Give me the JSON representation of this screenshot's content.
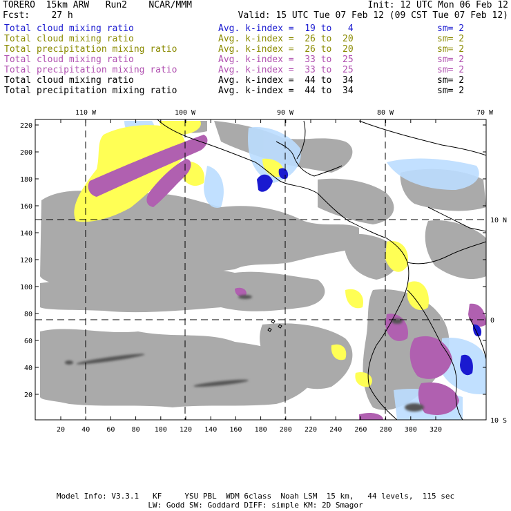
{
  "header": {
    "left_line1": "TORERO  15km ARW   Run2    NCAR/MMM",
    "right_line1": "Init: 12 UTC Mon 06 Feb 12",
    "left_line2": "Fcst:    27 h",
    "right_line2": "Valid: 15 UTC Tue 07 Feb 12 (09 CST Tue 07 Feb 12)"
  },
  "legend": [
    {
      "field": "Total cloud mixing ratio",
      "index": "Avg. k-index =  19 to   4",
      "sm": "sm= 2",
      "color": "#1a1ad0"
    },
    {
      "field": "Total cloud mixing ratio",
      "index": "Avg. k-index =  26 to  20",
      "sm": "sm= 2",
      "color": "#8a8a00"
    },
    {
      "field": "Total precipitation mixing ratio",
      "index": "Avg. k-index =  26 to  20",
      "sm": "sm= 2",
      "color": "#8a8a00"
    },
    {
      "field": "Total cloud mixing ratio",
      "index": "Avg. k-index =  33 to  25",
      "sm": "sm= 2",
      "color": "#b050b0"
    },
    {
      "field": "Total precipitation mixing ratio",
      "index": "Avg. k-index =  33 to  25",
      "sm": "sm= 2",
      "color": "#b050b0"
    },
    {
      "field": "Total cloud mixing ratio",
      "index": "Avg. k-index =  44 to  34",
      "sm": "sm= 2",
      "color": "#000000"
    },
    {
      "field": "Total precipitation mixing ratio",
      "index": "Avg. k-index =  44 to  34",
      "sm": "sm= 2",
      "color": "#000000"
    }
  ],
  "map": {
    "lon_labels": [
      "110 W",
      "100 W",
      "90 W",
      "80 W",
      "70 W"
    ],
    "lat_labels": [
      "10 N",
      "0",
      "10 S"
    ],
    "y_ticks": [
      "220",
      "200",
      "180",
      "160",
      "140",
      "120",
      "100",
      "80",
      "60",
      "40",
      "20"
    ],
    "x_ticks": [
      "20",
      "40",
      "60",
      "80",
      "100",
      "120",
      "140",
      "160",
      "180",
      "200",
      "220",
      "240",
      "260",
      "280",
      "300",
      "320"
    ]
  },
  "colors": {
    "gray_cloud": "#aaaaaa",
    "yellow": "#ffff55",
    "purple": "#b060b0",
    "light_blue": "#bbddff",
    "blue": "#1a1ad0",
    "coast": "#000000"
  },
  "footer": {
    "line1": "Model Info: V3.3.1   KF     YSU PBL  WDM 6class  Noah LSM  15 km,   44 levels,  115 sec",
    "line2": "LW: Godd SW: Goddard DIFF: simple KM: 2D Smagor"
  }
}
